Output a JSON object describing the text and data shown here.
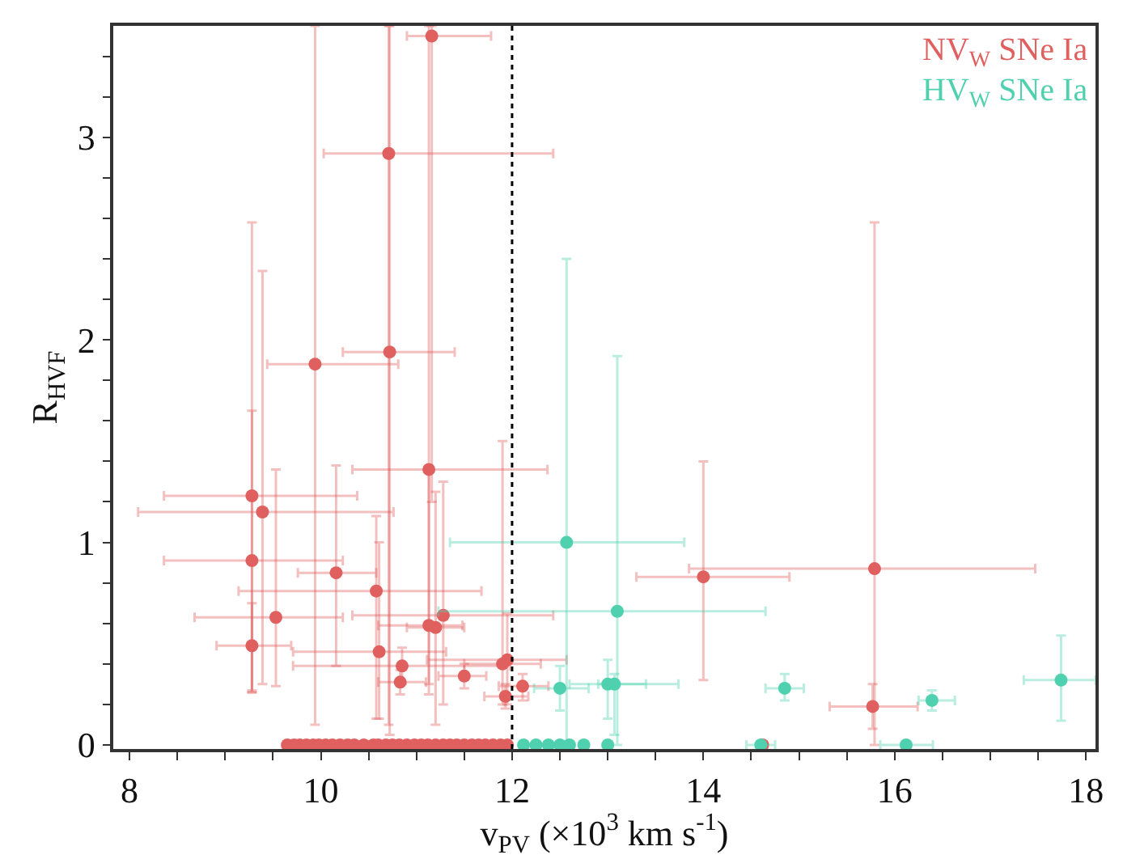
{
  "chart_data": {
    "type": "scatter",
    "xlabel": "v$_{PV}$ (×10$^{3}$ km s$^{-1}$)",
    "ylabel": "R$_{HVF}$",
    "xlim": [
      7.83,
      18.1
    ],
    "ylim": [
      -0.02,
      3.55
    ],
    "xticks": [
      8,
      {
        "value": 8.5,
        "label": null
      },
      {
        "value": 9,
        "label": null
      },
      {
        "value": 9.5,
        "label": null
      },
      10,
      {
        "value": 10.5,
        "label": null
      },
      {
        "value": 11,
        "label": null
      },
      {
        "value": 11.5,
        "label": null
      },
      12,
      {
        "value": 12.5,
        "label": null
      },
      {
        "value": 13,
        "label": null
      },
      {
        "value": 13.5,
        "label": null
      },
      14,
      {
        "value": 14.5,
        "label": null
      },
      {
        "value": 15,
        "label": null
      },
      {
        "value": 15.5,
        "label": null
      },
      16,
      {
        "value": 16.5,
        "label": null
      },
      {
        "value": 17,
        "label": null
      },
      {
        "value": 17.5,
        "label": null
      },
      18
    ],
    "yticks": [
      0,
      {
        "value": 0.2,
        "label": null
      },
      {
        "value": 0.4,
        "label": null
      },
      {
        "value": 0.6,
        "label": null
      },
      {
        "value": 0.8,
        "label": null
      },
      1,
      {
        "value": 1.2,
        "label": null
      },
      {
        "value": 1.4,
        "label": null
      },
      {
        "value": 1.6,
        "label": null
      },
      {
        "value": 1.8,
        "label": null
      },
      2,
      {
        "value": 2.2,
        "label": null
      },
      {
        "value": 2.4,
        "label": null
      },
      {
        "value": 2.6,
        "label": null
      },
      {
        "value": 2.8,
        "label": null
      },
      3,
      {
        "value": 3.2,
        "label": null
      },
      {
        "value": 3.4,
        "label": null
      }
    ],
    "marker": "circle",
    "legend": "top right",
    "ref_lines": [
      {
        "axis": "x",
        "value": 12,
        "label": null,
        "color": "#000000",
        "line_style": "dotted"
      }
    ],
    "series": [
      {
        "name": "NV$_{W}$ SNe Ia",
        "color": "#e06060",
        "x": [
          11.16,
          10.71,
          10.72,
          9.94,
          9.28,
          9.39,
          9.28,
          10.16,
          10.58,
          9.53,
          9.28,
          10.61,
          10.85,
          10.83,
          11.13,
          11.28,
          11.13,
          11.2,
          11.5,
          11.9,
          11.95,
          11.93,
          12.11,
          14.0,
          15.79,
          15.77,
          9.65,
          9.72,
          9.78,
          9.85,
          9.92,
          9.98,
          10.05,
          10.12,
          10.2,
          10.28,
          10.35,
          10.45,
          10.55,
          10.6,
          10.68,
          10.75,
          10.82,
          10.9,
          10.98,
          11.05,
          11.12,
          11.2,
          11.28,
          11.35,
          11.42,
          11.5,
          11.58,
          11.65,
          11.72,
          11.8,
          11.88,
          11.95,
          14.62
        ],
        "values": [
          3.5,
          2.92,
          1.94,
          1.88,
          1.23,
          1.15,
          0.91,
          0.85,
          0.76,
          0.63,
          0.49,
          0.46,
          0.39,
          0.31,
          1.36,
          0.64,
          0.59,
          0.58,
          0.34,
          0.4,
          0.42,
          0.24,
          0.29,
          0.83,
          0.87,
          0.19,
          0,
          0,
          0,
          0,
          0,
          0,
          0,
          0,
          0,
          0,
          0,
          0,
          0,
          0,
          0,
          0,
          0,
          0,
          0,
          0,
          0,
          0,
          0,
          0,
          0,
          0,
          0,
          0,
          0,
          0,
          0,
          0,
          0
        ],
        "errors": [
          [
            1.2,
            3.55
          ],
          [
            0.1,
            3.55
          ],
          [
            0.05,
            3.55
          ],
          [
            0.1,
            3.55
          ],
          [
            0.26,
            2.58
          ],
          [
            0.3,
            2.34
          ],
          [
            0.26,
            1.65
          ],
          [
            0.39,
            1.38
          ],
          [
            0.13,
            1.13
          ],
          [
            0.29,
            1.36
          ],
          [
            0.27,
            0.7
          ],
          [
            0.13,
            1.0
          ],
          [
            0.3,
            0.48
          ],
          [
            0.25,
            0.37
          ],
          [
            0.25,
            3.55
          ],
          [
            0.2,
            1.3
          ],
          [
            0.3,
            1.35
          ],
          [
            0.1,
            1.25
          ],
          [
            0.28,
            0.4
          ],
          [
            0.2,
            1.5
          ],
          [
            0.2,
            0.65
          ],
          [
            0.18,
            0.3
          ],
          [
            0.22,
            0.35
          ],
          [
            0.32,
            1.4
          ],
          [
            0.0,
            2.58
          ],
          [
            0.08,
            0.3
          ],
          null,
          null,
          null,
          null,
          null,
          null,
          null,
          null,
          null,
          null,
          null,
          null,
          null,
          null,
          null,
          null,
          null,
          null,
          null,
          null,
          null,
          null,
          null,
          null,
          null,
          null,
          null,
          null,
          null,
          null,
          null,
          null,
          null
        ],
        "xerrors": [
          [
            10.9,
            11.78
          ],
          [
            10.03,
            12.43
          ],
          [
            10.23,
            11.4
          ],
          [
            9.44,
            10.81
          ],
          [
            8.36,
            10.38
          ],
          [
            8.09,
            10.76
          ],
          [
            8.36,
            10.23
          ],
          [
            9.76,
            10.58
          ],
          [
            9.14,
            11.68
          ],
          [
            8.68,
            10.23
          ],
          [
            8.91,
            9.69
          ],
          [
            9.71,
            11.31
          ],
          [
            9.71,
            11.98
          ],
          [
            10.6,
            11.1
          ],
          [
            10.33,
            12.37
          ],
          [
            10.33,
            12.43
          ],
          [
            10.6,
            11.48
          ],
          [
            10.9,
            11.5
          ],
          [
            11.23,
            11.73
          ],
          [
            11.5,
            12.3
          ],
          [
            11.11,
            12.57
          ],
          [
            11.71,
            12.17
          ],
          [
            11.86,
            12.38
          ],
          [
            13.3,
            14.9
          ],
          [
            13.85,
            17.47
          ],
          [
            15.32,
            16.24
          ],
          null,
          null,
          null,
          null,
          null,
          null,
          null,
          null,
          null,
          null,
          null,
          null,
          null,
          null,
          null,
          null,
          null,
          null,
          null,
          null,
          null,
          null,
          null,
          null,
          null,
          null,
          null,
          null,
          null,
          null,
          null,
          null,
          null
        ]
      },
      {
        "name": "HV$_{W}$ SNe Ia",
        "color": "#4fd1b0",
        "x": [
          12.57,
          13.1,
          12.5,
          13.0,
          13.07,
          14.85,
          16.39,
          17.74,
          12.12,
          12.25,
          12.38,
          12.5,
          12.6,
          12.75,
          13.0,
          14.6,
          16.12
        ],
        "values": [
          1.0,
          0.66,
          0.28,
          0.3,
          0.3,
          0.28,
          0.22,
          0.32,
          0,
          0,
          0,
          0,
          0,
          0,
          0,
          0,
          0
        ],
        "errors": [
          [
            0.0,
            2.4
          ],
          [
            0.0,
            1.92
          ],
          [
            0.17,
            0.39
          ],
          [
            0.13,
            0.42
          ],
          [
            0.05,
            0.35
          ],
          [
            0.22,
            0.35
          ],
          [
            0.17,
            0.27
          ],
          [
            0.12,
            0.54
          ],
          null,
          null,
          null,
          null,
          null,
          null,
          null,
          null,
          null
        ],
        "xerrors": [
          [
            11.35,
            13.8
          ],
          [
            11.23,
            14.65
          ],
          [
            12.23,
            12.8
          ],
          [
            12.6,
            13.4
          ],
          [
            12.9,
            13.74
          ],
          [
            14.65,
            15.05
          ],
          [
            16.25,
            16.63
          ],
          [
            17.35,
            18.1
          ],
          null,
          null,
          null,
          null,
          null,
          null,
          null,
          [
            14.45,
            14.75
          ],
          [
            15.85,
            16.4
          ]
        ]
      }
    ]
  }
}
